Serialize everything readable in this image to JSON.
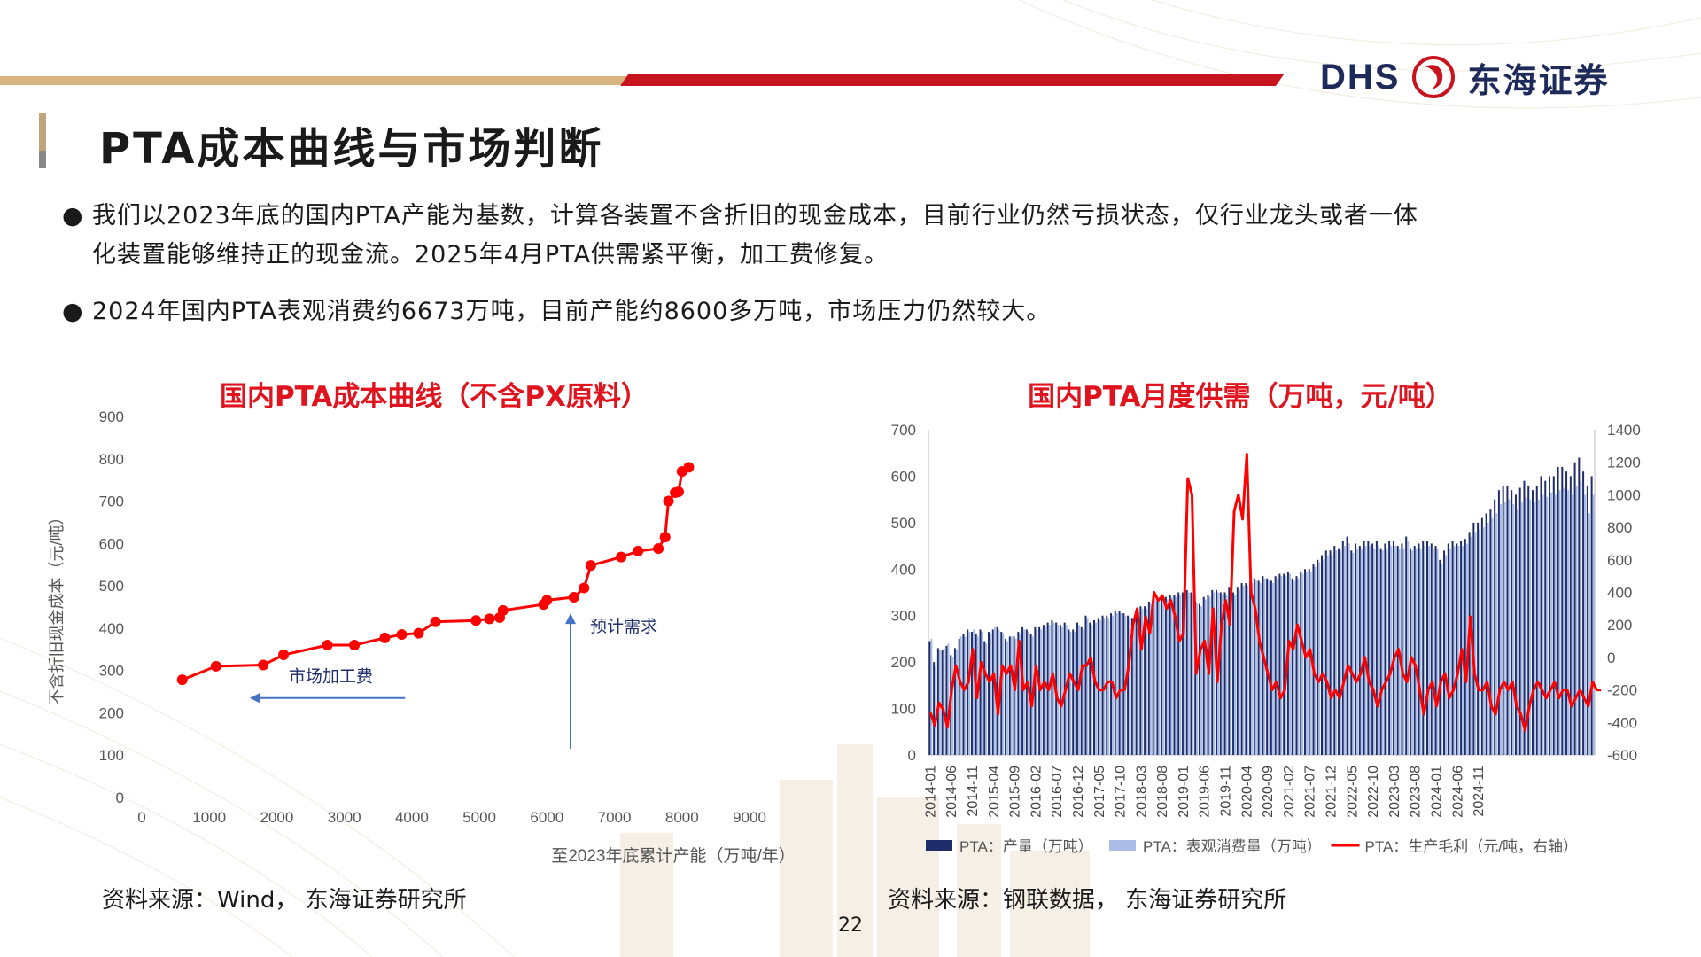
{
  "header": {
    "logo_en": "DHS",
    "logo_cn": "东海证券",
    "title": "PTA成本曲线与市场判断"
  },
  "bullets": [
    {
      "line1": "我们以2023年底的国内PTA产能为基数，计算各装置不含折旧的现金成本，目前行业仍然亏损状态，仅行业龙头或者一体",
      "line2": "化装置能够维持正的现金流。2025年4月PTA供需紧平衡，加工费修复。"
    },
    {
      "line1": "2024年国内PTA表观消费约6673万吨，目前产能约8600多万吨，市场压力仍然较大。",
      "line2": ""
    }
  ],
  "colors": {
    "accent_red": "#e0141e",
    "navy": "#1f2d6b",
    "light_blue": "#a9bde6",
    "gold": "#d8b580"
  },
  "page_number": "22",
  "chart_data": [
    {
      "type": "line",
      "title": "国内PTA成本曲线（不含PX原料）",
      "xlabel": "至2023年底累计产能（万吨/年）",
      "ylabel": "不含折旧现金成本（元/吨）",
      "xlim": [
        0,
        9000
      ],
      "ylim": [
        0,
        900
      ],
      "x_ticks": [
        0,
        1000,
        2000,
        3000,
        4000,
        5000,
        6000,
        7000,
        8000,
        9000
      ],
      "y_ticks": [
        0,
        100,
        200,
        300,
        400,
        500,
        600,
        700,
        800,
        900
      ],
      "grid": false,
      "series": [
        {
          "color": "#ff0000",
          "points": [
            [
              600,
              278
            ],
            [
              1100,
              310
            ],
            [
              1800,
              313
            ],
            [
              2100,
              337
            ],
            [
              2750,
              360
            ],
            [
              3150,
              360
            ],
            [
              3600,
              377
            ],
            [
              3850,
              385
            ],
            [
              4100,
              388
            ],
            [
              4350,
              415
            ],
            [
              4950,
              418
            ],
            [
              5150,
              422
            ],
            [
              5300,
              425
            ],
            [
              5350,
              442
            ],
            [
              5950,
              456
            ],
            [
              6000,
              466
            ],
            [
              6400,
              473
            ],
            [
              6550,
              495
            ],
            [
              6650,
              548
            ],
            [
              7100,
              568
            ],
            [
              7350,
              582
            ],
            [
              7650,
              588
            ],
            [
              7750,
              615
            ],
            [
              7800,
              700
            ],
            [
              7900,
              720
            ],
            [
              7950,
              722
            ],
            [
              8000,
              770
            ],
            [
              8100,
              780
            ]
          ]
        }
      ],
      "annotations": [
        {
          "text": "市场加工费",
          "arrow": "left",
          "y": 235,
          "x_from": 3900,
          "x_to": 1600
        },
        {
          "text": "预计需求",
          "arrow": "up",
          "x": 6350,
          "y_from": 115,
          "y_to": 435
        }
      ],
      "source": "资料来源：Wind， 东海证券研究所"
    },
    {
      "type": "bar",
      "title": "国内PTA月度供需（万吨，元/吨）",
      "ylim": [
        0,
        700
      ],
      "y2lim": [
        -600,
        1400
      ],
      "y_ticks": [
        0,
        100,
        200,
        300,
        400,
        500,
        600,
        700
      ],
      "y2_ticks": [
        -600,
        -400,
        -200,
        0,
        200,
        400,
        600,
        800,
        1000,
        1200,
        1400
      ],
      "x_tick_labels": [
        "2014-01",
        "2014-06",
        "2014-11",
        "2015-04",
        "2015-09",
        "2016-02",
        "2016-07",
        "2016-12",
        "2017-05",
        "2017-10",
        "2018-03",
        "2018-08",
        "2019-01",
        "2019-06",
        "2019-11",
        "2020-04",
        "2020-09",
        "2021-02",
        "2021-07",
        "2021-12",
        "2022-05",
        "2022-10",
        "2023-03",
        "2023-08",
        "2024-01",
        "2024-06",
        "2024-11"
      ],
      "start_month": "2014-01",
      "grid": false,
      "legend_position": "bottom",
      "series": [
        {
          "name": "PTA：产量（万吨）",
          "axis": "left",
          "kind": "bar",
          "color": "#1f2d6b",
          "values": [
            245,
            200,
            230,
            225,
            235,
            215,
            230,
            250,
            260,
            270,
            265,
            260,
            270,
            245,
            265,
            270,
            275,
            265,
            250,
            255,
            255,
            265,
            275,
            270,
            260,
            275,
            275,
            280,
            285,
            290,
            285,
            280,
            285,
            270,
            270,
            285,
            275,
            300,
            285,
            290,
            295,
            300,
            300,
            305,
            310,
            310,
            305,
            300,
            295,
            310,
            320,
            320,
            330,
            340,
            335,
            340,
            340,
            345,
            345,
            350,
            350,
            355,
            350,
            330,
            325,
            340,
            345,
            355,
            355,
            350,
            350,
            360,
            350,
            360,
            370,
            370,
            375,
            380,
            375,
            385,
            380,
            375,
            385,
            390,
            390,
            395,
            380,
            385,
            395,
            400,
            400,
            410,
            420,
            430,
            440,
            440,
            450,
            445,
            460,
            470,
            440,
            455,
            450,
            460,
            460,
            455,
            460,
            445,
            455,
            460,
            460,
            450,
            455,
            470,
            445,
            450,
            455,
            460,
            460,
            455,
            450,
            420,
            440,
            455,
            460,
            455,
            460,
            465,
            480,
            500,
            500,
            510,
            520,
            530,
            550,
            570,
            580,
            580,
            570,
            560,
            575,
            590,
            580,
            570,
            580,
            600,
            590,
            600,
            600,
            620,
            620,
            610,
            600,
            630,
            640,
            610,
            580,
            600
          ]
        },
        {
          "name": "PTA：表观消费量（万吨）",
          "axis": "left",
          "kind": "bar",
          "color": "#a9bde6",
          "values": [
            250,
            190,
            225,
            230,
            240,
            210,
            225,
            255,
            255,
            265,
            270,
            255,
            265,
            240,
            260,
            275,
            270,
            260,
            245,
            255,
            250,
            260,
            270,
            265,
            255,
            270,
            270,
            275,
            280,
            285,
            280,
            275,
            280,
            265,
            265,
            280,
            270,
            295,
            280,
            285,
            290,
            295,
            295,
            300,
            305,
            305,
            300,
            295,
            290,
            305,
            315,
            315,
            325,
            335,
            330,
            335,
            335,
            340,
            340,
            345,
            345,
            350,
            345,
            325,
            320,
            335,
            340,
            350,
            350,
            345,
            345,
            355,
            345,
            355,
            365,
            365,
            370,
            375,
            370,
            380,
            375,
            370,
            380,
            385,
            385,
            390,
            375,
            380,
            390,
            395,
            395,
            405,
            415,
            420,
            430,
            430,
            440,
            440,
            450,
            455,
            435,
            445,
            445,
            450,
            450,
            445,
            450,
            440,
            445,
            450,
            450,
            445,
            445,
            460,
            440,
            445,
            445,
            450,
            450,
            445,
            445,
            410,
            430,
            445,
            450,
            450,
            450,
            455,
            470,
            480,
            485,
            490,
            500,
            510,
            520,
            540,
            545,
            550,
            540,
            530,
            545,
            555,
            550,
            545,
            550,
            560,
            555,
            565,
            560,
            570,
            575,
            570,
            560,
            580,
            590,
            560,
            520,
            560
          ]
        },
        {
          "name": "PTA：生产毛利（元/吨，右轴）",
          "axis": "right",
          "kind": "line",
          "color": "#ff0000",
          "values": [
            -340,
            -420,
            -280,
            -320,
            -430,
            -200,
            -50,
            -150,
            -200,
            -150,
            50,
            -250,
            -30,
            -100,
            -150,
            -100,
            -350,
            -50,
            -100,
            -50,
            -200,
            100,
            -200,
            -150,
            -300,
            -50,
            -200,
            -150,
            -200,
            -100,
            -250,
            -300,
            -200,
            -100,
            -150,
            -200,
            -50,
            -50,
            0,
            -150,
            -200,
            -200,
            -150,
            -150,
            -250,
            -200,
            -200,
            -50,
            200,
            300,
            50,
            250,
            150,
            400,
            350,
            380,
            300,
            350,
            250,
            100,
            150,
            1100,
            1000,
            -100,
            50,
            100,
            -100,
            300,
            -150,
            200,
            350,
            200,
            900,
            1000,
            850,
            1250,
            400,
            300,
            100,
            0,
            -100,
            -200,
            -150,
            -250,
            -200,
            100,
            50,
            200,
            100,
            0,
            50,
            -100,
            -150,
            -100,
            -150,
            -250,
            -200,
            -250,
            -150,
            -50,
            -100,
            -150,
            -100,
            0,
            -150,
            -200,
            -300,
            -200,
            -150,
            -100,
            0,
            50,
            -100,
            -150,
            0,
            -50,
            -200,
            -350,
            -200,
            -150,
            -300,
            -150,
            -100,
            -250,
            -200,
            -100,
            50,
            -150,
            250,
            -100,
            -200,
            -200,
            -150,
            -300,
            -350,
            -200,
            -150,
            -200,
            -150,
            -300,
            -350,
            -450,
            -300,
            -200,
            -150,
            -200,
            -250,
            -200,
            -150,
            -250,
            -200,
            -200,
            -300,
            -250,
            -200,
            -250,
            -300,
            -150,
            -200,
            -200
          ]
        }
      ],
      "source": "资料来源：钢联数据， 东海证券研究所"
    }
  ]
}
